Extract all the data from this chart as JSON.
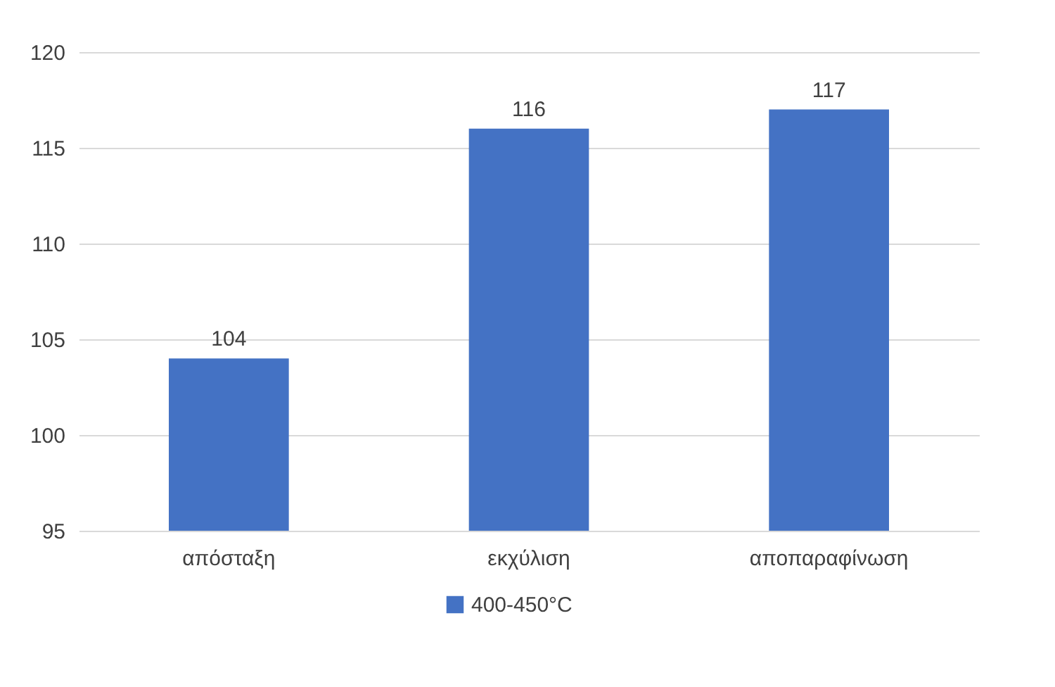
{
  "chart_data": {
    "type": "bar",
    "categories": [
      "απόσταξη",
      "εκχύλιση",
      "αποπαραφίνωση"
    ],
    "series": [
      {
        "name": "400-450°C",
        "color": "#4472c4",
        "values": [
          104,
          116,
          117
        ]
      }
    ],
    "ylim": [
      95,
      120
    ],
    "yticks": [
      95,
      100,
      105,
      110,
      115,
      120
    ],
    "grid": "y",
    "legend": "bottom",
    "data_labels": true
  }
}
